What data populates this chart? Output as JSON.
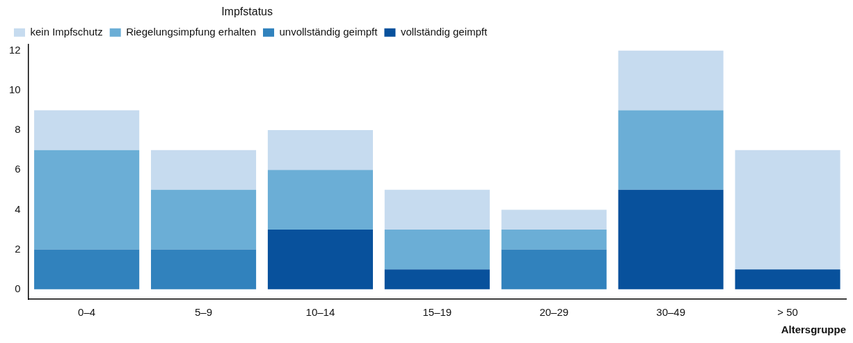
{
  "chart_data": {
    "type": "bar",
    "stacked": true,
    "xlabel": "Altersgruppe",
    "legend_title": "Impfstatus",
    "legend": "top left",
    "grid": false,
    "categories": [
      "0–4",
      "5–9",
      "10–14",
      "15–19",
      "20–29",
      "30–49",
      "> 50"
    ],
    "ylim": [
      -0.5,
      12.3
    ],
    "yticks": [
      0,
      2,
      4,
      6,
      8,
      10,
      12
    ],
    "series": [
      {
        "name": "vollständig geimpft",
        "color": "#08519c",
        "values": [
          0,
          0,
          3,
          1,
          0,
          5,
          1
        ]
      },
      {
        "name": "unvollständig geimpft",
        "color": "#3182bd",
        "values": [
          2,
          2,
          0,
          0,
          2,
          0,
          0
        ]
      },
      {
        "name": "Riegelungsimpfung erhalten",
        "color": "#6baed6",
        "values": [
          5,
          3,
          3,
          2,
          1,
          4,
          0
        ]
      },
      {
        "name": "kein Impfschutz",
        "color": "#c6dbef",
        "values": [
          2,
          2,
          2,
          2,
          1,
          3,
          6
        ]
      }
    ]
  }
}
